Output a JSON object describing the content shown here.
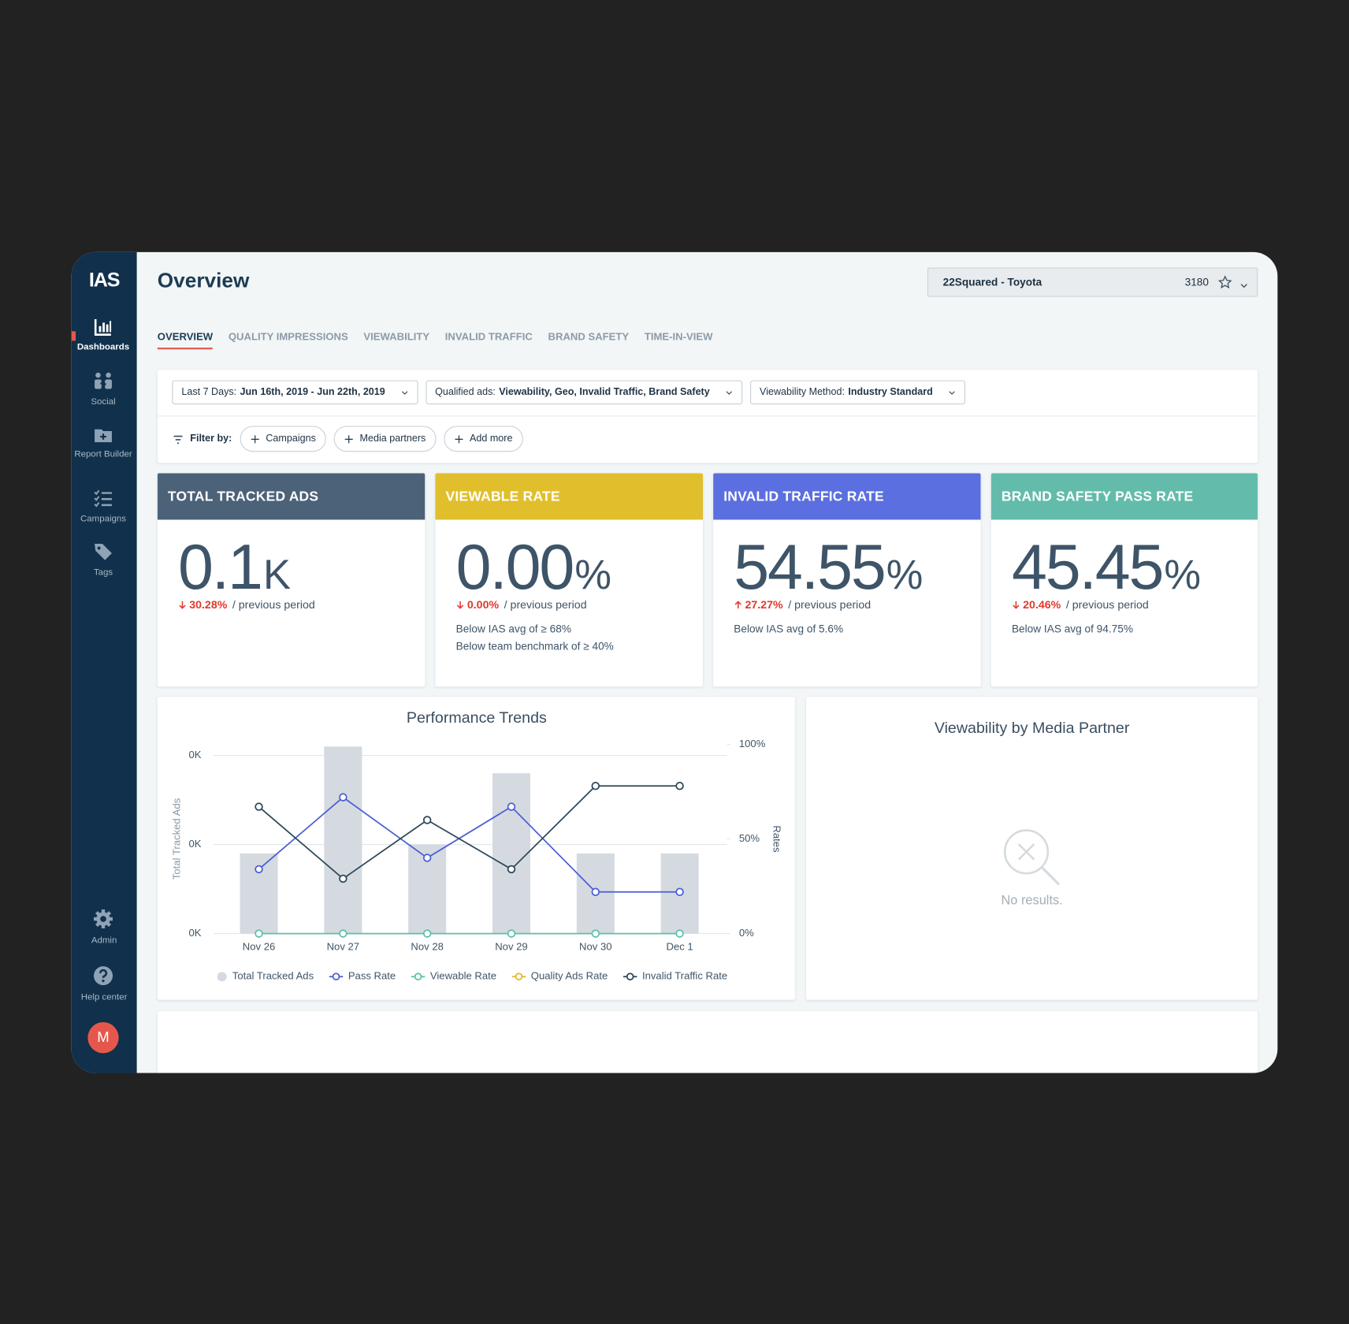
{
  "sidebar": {
    "logo": "IAS",
    "nav": [
      "Dashboards",
      "Social",
      "Report Builder",
      "Campaigns",
      "Tags"
    ],
    "bottom_nav": [
      "Admin",
      "Help center"
    ],
    "avatar": "M"
  },
  "header": {
    "title": "Overview",
    "account": "22Squared - Toyota",
    "account_id": "3180"
  },
  "tabs": [
    "OVERVIEW",
    "QUALITY IMPRESSIONS",
    "VIEWABILITY",
    "INVALID TRAFFIC",
    "BRAND SAFETY",
    "TIME-IN-VIEW"
  ],
  "filters": {
    "dropdowns": [
      {
        "label": "Last 7 Days:",
        "value": "Jun 16th, 2019 - Jun 22th, 2019"
      },
      {
        "label": "Qualified ads:",
        "value": "Viewability, Geo, Invalid Traffic, Brand Safety"
      },
      {
        "label": "Viewability Method:",
        "value": "Industry Standard"
      }
    ],
    "filter_label": "Filter by:",
    "chips": [
      "Campaigns",
      "Media partners",
      "Add more"
    ]
  },
  "kpis": [
    {
      "title": "TOTAL TRACKED ADS",
      "value": "0.1",
      "unit": "K",
      "change": "30.28%",
      "direction": "down",
      "change_label": "/ previous period",
      "color": "#4b6279"
    },
    {
      "title": "VIEWABLE RATE",
      "value": "0.00",
      "unit": "%",
      "change": "0.00%",
      "direction": "down",
      "change_label": "/ previous period",
      "notes": [
        "Below IAS avg of ≥ 68%",
        "Below team benchmark of ≥ 40%"
      ],
      "color": "#e1bf2c"
    },
    {
      "title": "INVALID TRAFFIC RATE",
      "value": "54.55",
      "unit": "%",
      "change": "27.27%",
      "direction": "up",
      "change_label": "/ previous period",
      "notes": [
        "Below IAS avg of 5.6%"
      ],
      "color": "#5b6fe0"
    },
    {
      "title": "BRAND SAFETY PASS RATE",
      "value": "45.45",
      "unit": "%",
      "change": "20.46%",
      "direction": "down",
      "change_label": "/ previous period",
      "notes": [
        "Below IAS avg of 94.75%"
      ],
      "color": "#63bcab"
    }
  ],
  "chart_data": {
    "type": "combo",
    "title": "Performance Trends",
    "y_label": "Total Tracked Ads",
    "y2_label": "Rates",
    "categories": [
      "Nov 26",
      "Nov 27",
      "Nov 28",
      "Nov 29",
      "Nov 30",
      "Dec 1"
    ],
    "ylim": [
      0,
      21.25
    ],
    "yticks": [
      {
        "value": 0,
        "label": "0K"
      },
      {
        "value": 10,
        "label": "0K"
      },
      {
        "value": 20,
        "label": "0K"
      }
    ],
    "y2lim": [
      0,
      100
    ],
    "y2ticks": [
      {
        "value": 0,
        "label": "0%"
      },
      {
        "value": 50,
        "label": "50%"
      },
      {
        "value": 100,
        "label": "100%"
      }
    ],
    "grid": true,
    "legend": "bottom",
    "series": [
      {
        "name": "Total Tracked Ads",
        "type": "bar",
        "color": "#d5dae1",
        "values": [
          9,
          21,
          10,
          18,
          9,
          9
        ]
      },
      {
        "name": "Pass Rate",
        "type": "line",
        "axis": "y2",
        "color": "#4a5ed6",
        "values": [
          34,
          72,
          40,
          67,
          22,
          22
        ]
      },
      {
        "name": "Viewable Rate",
        "type": "line",
        "axis": "y2",
        "color": "#5bbfa8",
        "values": [
          0,
          0,
          0,
          0,
          0,
          0
        ]
      },
      {
        "name": "Quality Ads Rate",
        "type": "line",
        "axis": "y2",
        "color": "#e3b62a",
        "values": [
          null,
          null,
          null,
          null,
          null,
          null
        ]
      },
      {
        "name": "Invalid Traffic Rate",
        "type": "line",
        "axis": "y2",
        "color": "#2c4658",
        "values": [
          67,
          29,
          60,
          34,
          78,
          78
        ]
      }
    ]
  },
  "media_partner": {
    "title": "Viewability by Media Partner",
    "empty": "No results."
  }
}
